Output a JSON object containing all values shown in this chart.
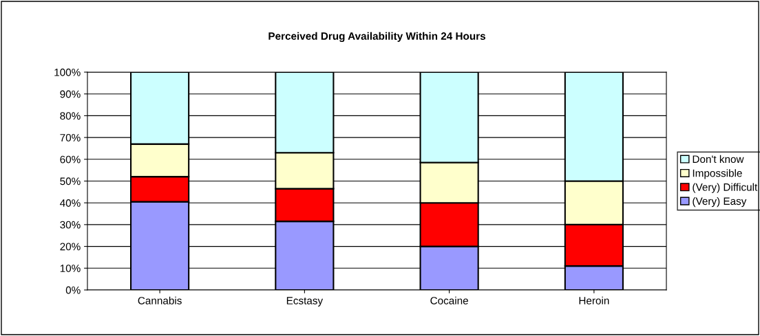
{
  "chart_data": {
    "type": "bar",
    "title": "Perceived Drug Availability Within 24 Hours",
    "categories": [
      "Cannabis",
      "Ecstasy",
      "Cocaine",
      "Heroin"
    ],
    "stacked": true,
    "series": [
      {
        "name": "(Very) Easy",
        "color": "#9999ff",
        "values": [
          40.5,
          31.5,
          20,
          11
        ]
      },
      {
        "name": "(Very) Difficult",
        "color": "#ff0000",
        "values": [
          11.5,
          15,
          20,
          19
        ]
      },
      {
        "name": "Impossible",
        "color": "#ffffcc",
        "values": [
          15,
          16.5,
          18.5,
          20
        ]
      },
      {
        "name": "Don't know",
        "color": "#ccffff",
        "values": [
          33,
          37,
          41.5,
          50
        ]
      }
    ],
    "ylim": [
      0,
      100
    ],
    "yticks": [
      {
        "value": 0,
        "label": "0%"
      },
      {
        "value": 10,
        "label": "10%"
      },
      {
        "value": 20,
        "label": "20%"
      },
      {
        "value": 30,
        "label": "30%"
      },
      {
        "value": 40,
        "label": "40%"
      },
      {
        "value": 50,
        "label": "50%"
      },
      {
        "value": 60,
        "label": "60%"
      },
      {
        "value": 70,
        "label": "70%"
      },
      {
        "value": 80,
        "label": "80%"
      },
      {
        "value": 90,
        "label": "90%"
      },
      {
        "value": 100,
        "label": "100%"
      }
    ],
    "grid": "y",
    "legend": "right"
  }
}
